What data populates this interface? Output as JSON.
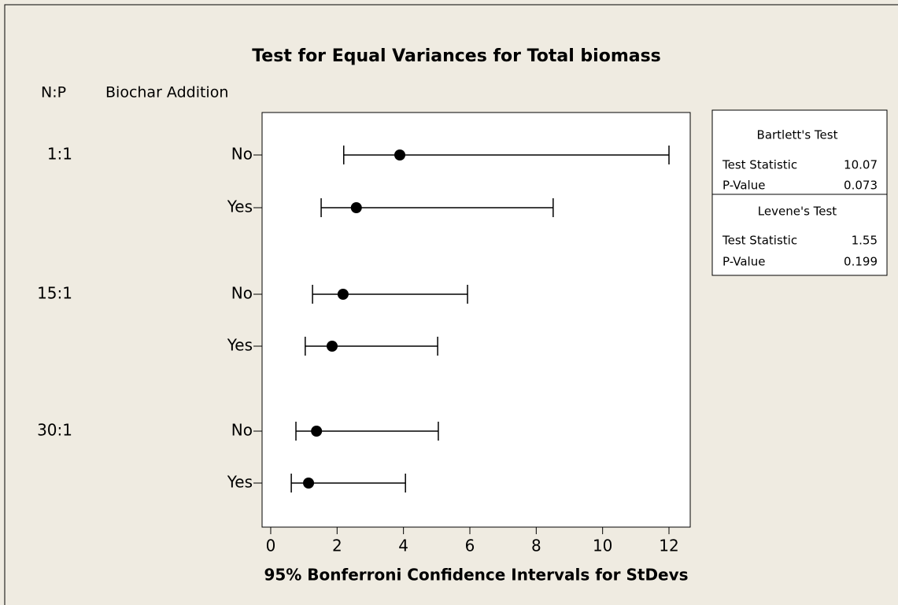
{
  "chart_data": {
    "type": "interval",
    "title": "Test for Equal Variances for Total biomass",
    "group_header": "N:P",
    "subgroup_header": "Biochar Addition",
    "row_groups": [
      "1:1",
      null,
      "15:1",
      null,
      "30:1",
      null
    ],
    "categories": [
      "No",
      "Yes",
      "No",
      "Yes",
      "No",
      "Yes"
    ],
    "estimate": [
      3.89,
      2.58,
      2.18,
      1.85,
      1.38,
      1.14
    ],
    "lower": [
      2.2,
      1.52,
      1.26,
      1.04,
      0.76,
      0.62
    ],
    "upper": [
      12.0,
      8.51,
      5.93,
      5.03,
      5.05,
      4.06
    ],
    "color": "#000000",
    "xlabel": "95% Bonferroni Confidence Intervals for StDevs",
    "xlim": [
      -0.26,
      12.64
    ],
    "xticks": [
      0,
      2,
      4,
      6,
      8,
      10,
      12
    ],
    "tests": [
      {
        "name": "Bartlett's Test",
        "rows": [
          {
            "label": "Test Statistic",
            "value": 10.07
          },
          {
            "label": "P-Value",
            "value": 0.073
          }
        ]
      },
      {
        "name": "Levene's Test",
        "rows": [
          {
            "label": "Test Statistic",
            "value": 1.55
          },
          {
            "label": "P-Value",
            "value": 0.199
          }
        ]
      }
    ]
  }
}
